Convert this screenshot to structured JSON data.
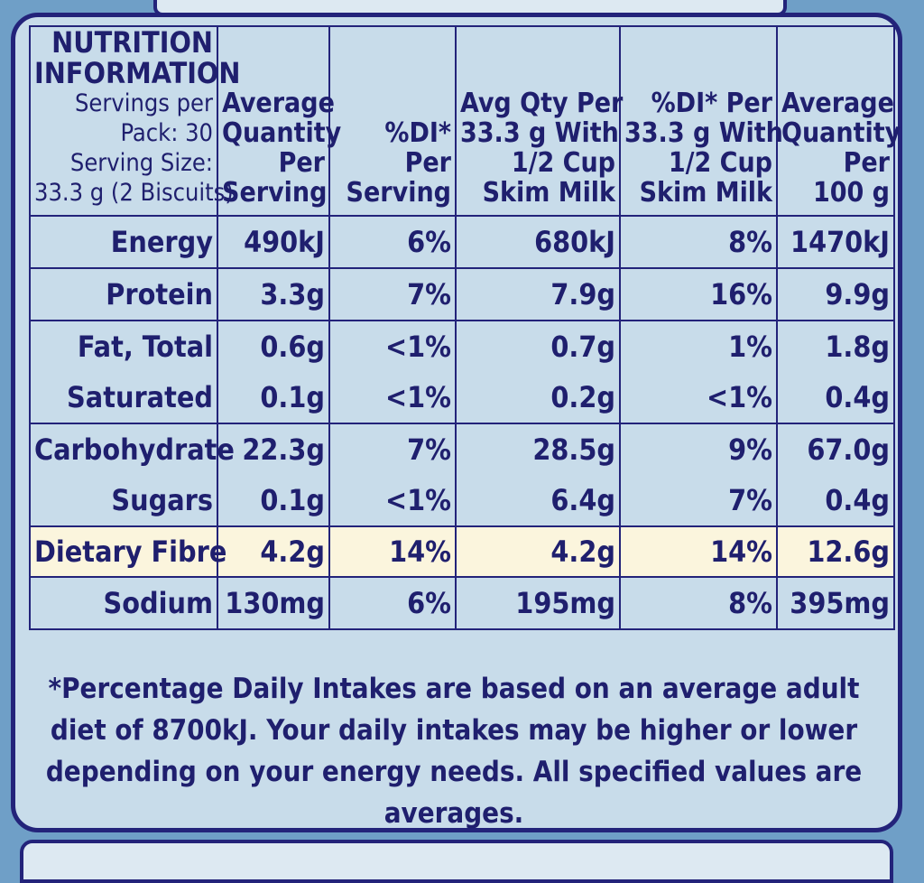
{
  "header": {
    "info_title_line1": "NUTRITION",
    "info_title_line2": "INFORMATION",
    "servings_line1": "Servings per",
    "servings_line2": "Pack: 30",
    "serving_size_line1": "Serving Size:",
    "serving_size_line2": "33.3 g (2 Biscuits)",
    "columns": [
      [
        "Average",
        "Quantity",
        "Per",
        "Serving"
      ],
      [
        "%DI*",
        "Per",
        "Serving"
      ],
      [
        "Avg Qty Per",
        "33.3 g With",
        "1/2 Cup",
        "Skim Milk"
      ],
      [
        "%DI* Per",
        "33.3 g With",
        "1/2 Cup",
        "Skim Milk"
      ],
      [
        "Average",
        "Quantity",
        "Per",
        "100 g"
      ]
    ]
  },
  "rows": [
    {
      "label": "Energy",
      "values": [
        "490kJ",
        "6%",
        "680kJ",
        "8%",
        "1470kJ"
      ]
    },
    {
      "label": "Protein",
      "values": [
        "3.3g",
        "7%",
        "7.9g",
        "16%",
        "9.9g"
      ]
    },
    {
      "label": "Fat, Total",
      "values": [
        "0.6g",
        "<1%",
        "0.7g",
        "1%",
        "1.8g"
      ]
    },
    {
      "label": "Saturated",
      "values": [
        "0.1g",
        "<1%",
        "0.2g",
        "<1%",
        "0.4g"
      ]
    },
    {
      "label": "Carbohydrate",
      "values": [
        "22.3g",
        "7%",
        "28.5g",
        "9%",
        "67.0g"
      ]
    },
    {
      "label": "Sugars",
      "values": [
        "0.1g",
        "<1%",
        "6.4g",
        "7%",
        "0.4g"
      ]
    },
    {
      "label": "Dietary Fibre",
      "values": [
        "4.2g",
        "14%",
        "4.2g",
        "14%",
        "12.6g"
      ]
    },
    {
      "label": "Sodium",
      "values": [
        "130mg",
        "6%",
        "195mg",
        "8%",
        "395mg"
      ]
    }
  ],
  "footnote": "*Percentage Daily Intakes are based on an average adult diet of 8700kJ. Your daily intakes may be higher or lower depending on your energy needs. All specified values are averages.",
  "colors": {
    "ink": "#1f1f6e",
    "panel": "#c8dcea",
    "fibre_highlight": "#fbf5dd",
    "border": "#23237a"
  }
}
